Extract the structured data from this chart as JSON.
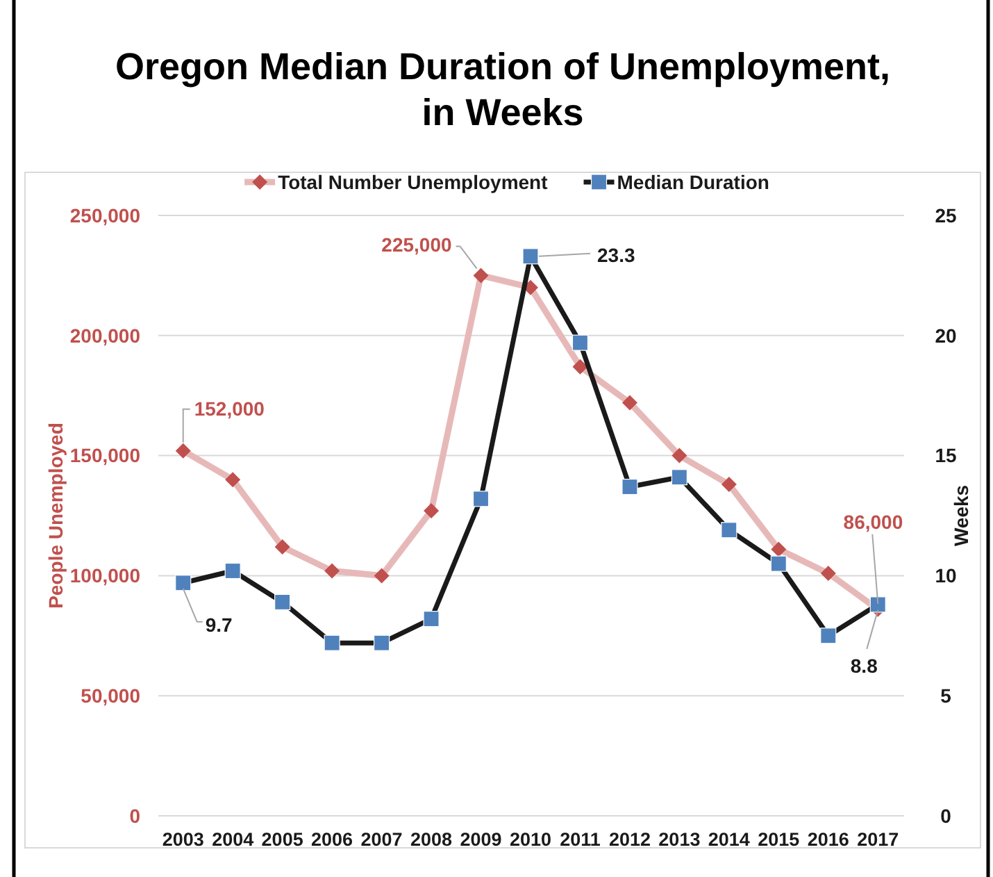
{
  "chart_data": {
    "type": "line",
    "title": "Oregon Median Duration of Unemployment,\nin Weeks",
    "ylabel": "People Unemployed",
    "y2label": "Weeks",
    "categories": [
      "2003",
      "2004",
      "2005",
      "2006",
      "2007",
      "2008",
      "2009",
      "2010",
      "2011",
      "2012",
      "2013",
      "2014",
      "2015",
      "2016",
      "2017"
    ],
    "series": [
      {
        "name": "Total Number Unemployment",
        "color": "#e6b9b8",
        "colors": [
          "#c0504d",
          "#c0504d",
          "#c0504d",
          "#c0504d",
          "#c0504d",
          "#c0504d",
          "#c0504d",
          "#c0504d",
          "#c0504d",
          "#c0504d",
          "#c0504d",
          "#c0504d",
          "#c0504d",
          "#c0504d",
          "#c0504d"
        ],
        "marker": "diamond",
        "values": [
          152000,
          140000,
          112000,
          102000,
          100000,
          127000,
          225000,
          220000,
          187000,
          172000,
          150000,
          138000,
          111000,
          101000,
          86000
        ],
        "value_labels": [
          "152,000",
          null,
          null,
          null,
          null,
          null,
          "225,000",
          null,
          null,
          null,
          null,
          null,
          null,
          null,
          "86,000"
        ]
      },
      {
        "name": "Median Duration",
        "color": "#1a1a1a",
        "colors": [
          "#4f81bd",
          "#4f81bd",
          "#4f81bd",
          "#4f81bd",
          "#4f81bd",
          "#4f81bd",
          "#4f81bd",
          "#4f81bd",
          "#4f81bd",
          "#4f81bd",
          "#4f81bd",
          "#4f81bd",
          "#4f81bd",
          "#4f81bd",
          "#4f81bd"
        ],
        "marker": "square",
        "axis": "y2",
        "values": [
          9.7,
          10.2,
          8.9,
          7.2,
          7.2,
          8.2,
          13.2,
          23.3,
          19.7,
          13.7,
          14.1,
          11.9,
          10.5,
          7.5,
          8.8
        ],
        "value_labels": [
          "9.7",
          null,
          null,
          null,
          null,
          null,
          null,
          "23.3",
          null,
          null,
          null,
          null,
          null,
          null,
          "8.8"
        ]
      }
    ],
    "ylim": [
      0,
      250000
    ],
    "yticks": [
      0,
      {
        "value": 50000,
        "label": "50,000"
      },
      {
        "value": 100000,
        "label": "100,000"
      },
      {
        "value": 150000,
        "label": "150,000"
      },
      {
        "value": 200000,
        "label": "200,000"
      },
      {
        "value": 250000,
        "label": "250,000"
      }
    ],
    "y2lim": [
      0,
      25
    ],
    "y2ticks": [
      0,
      5,
      10,
      15,
      20,
      25
    ],
    "grid": "y",
    "legend": "top",
    "line_style": "solid"
  }
}
